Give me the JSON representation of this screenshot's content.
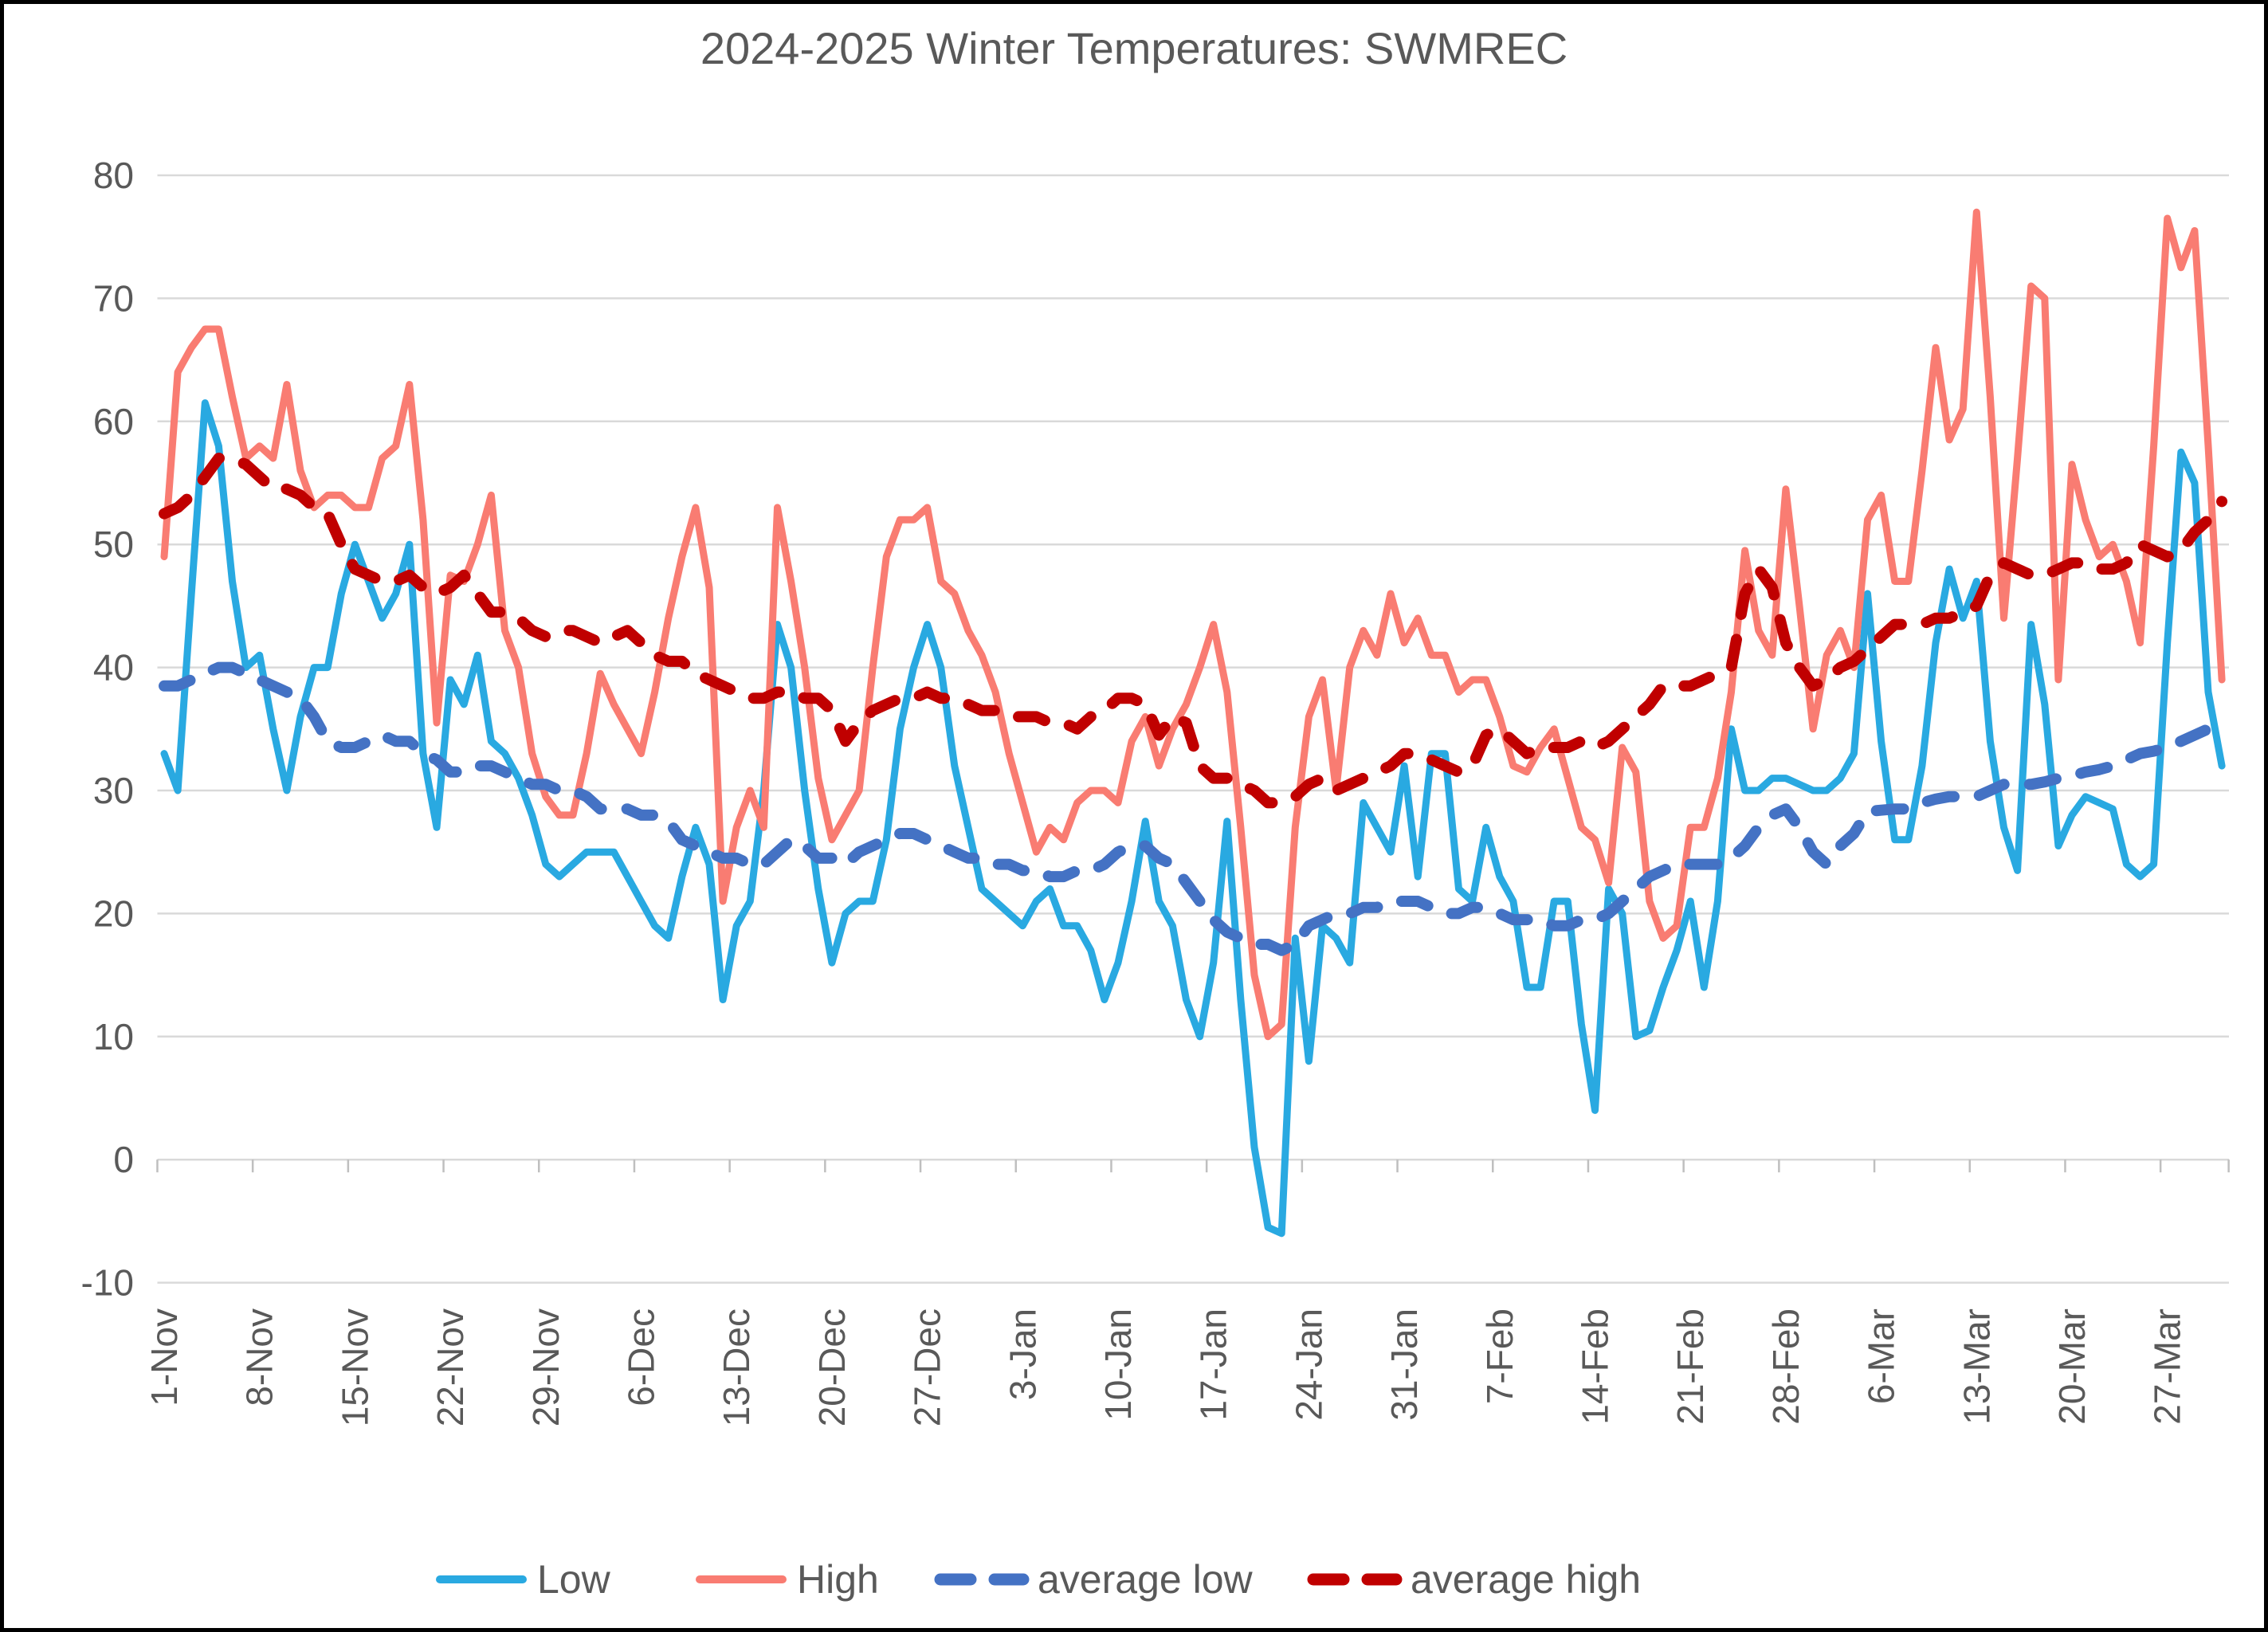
{
  "title": "2024-2025 Winter Temperatures: SWMREC",
  "colors": {
    "background": "#FFFFFF",
    "frame": "#000000",
    "gridline": "#D9D9D9",
    "axis_line": "#D9D9D9",
    "tick_mark": "#BFBFBF",
    "text": "#595959",
    "low": "#29A9E1",
    "high": "#F97C72",
    "average_low": "#4472C4",
    "average_high": "#C00000"
  },
  "y_axis": {
    "tick_labels": [
      "80",
      "70",
      "60",
      "50",
      "40",
      "30",
      "20",
      "10",
      "0",
      "-10"
    ],
    "tick_values": [
      80,
      70,
      60,
      50,
      40,
      30,
      20,
      10,
      0,
      -10
    ]
  },
  "x_axis": {
    "tick_labels": [
      "1-Nov",
      "8-Nov",
      "15-Nov",
      "22-Nov",
      "29-Nov",
      "6-Dec",
      "13-Dec",
      "20-Dec",
      "27-Dec",
      "3-Jan",
      "10-Jan",
      "17-Jan",
      "24-Jan",
      "31-Jan",
      "7-Feb",
      "14-Feb",
      "21-Feb",
      "28-Feb",
      "6-Mar",
      "13-Mar",
      "20-Mar",
      "27-Mar"
    ],
    "tick_label_indices": [
      0,
      7,
      14,
      21,
      28,
      35,
      42,
      49,
      56,
      63,
      70,
      77,
      84,
      91,
      98,
      105,
      112,
      119,
      126,
      133,
      140,
      147
    ]
  },
  "legend": {
    "items": [
      {
        "label": "Low",
        "color": "#29A9E1",
        "style": "solid",
        "x": 552
      },
      {
        "label": "High",
        "color": "#F97C72",
        "style": "solid",
        "x": 878
      },
      {
        "label": "average low",
        "color": "#4472C4",
        "style": "dashed",
        "x": 1180
      },
      {
        "label": "average high",
        "color": "#C00000",
        "style": "dashed",
        "x": 1648
      }
    ]
  },
  "chart_data": {
    "type": "line",
    "title": "2024-2025 Winter Temperatures: SWMREC",
    "xlabel": "",
    "ylabel": "",
    "ylim": [
      -10,
      80
    ],
    "grid": true,
    "legend_position": "bottom",
    "x_description": "Daily dates from 1-Nov through 31-Mar (152 categories, includes a 29-Feb placeholder); axis labeled every 7 days",
    "num_points": 152,
    "series": [
      {
        "name": "Low",
        "style": "solid",
        "color": "#29A9E1",
        "values": [
          33,
          30,
          46,
          61.5,
          58,
          47,
          40,
          41,
          35,
          30,
          36,
          40,
          40,
          46,
          50,
          47,
          44,
          46,
          50,
          33,
          27,
          39,
          37,
          41,
          34,
          33,
          31,
          28,
          24,
          23,
          24,
          25,
          25,
          25,
          23,
          21,
          19,
          18,
          23,
          27,
          24,
          13,
          19,
          21,
          30,
          43.5,
          40,
          30,
          22,
          16,
          20,
          21,
          21,
          26,
          35,
          40,
          43.5,
          40,
          32,
          27,
          22,
          21,
          20,
          19,
          21,
          22,
          19,
          19,
          17,
          13,
          16,
          21,
          27.5,
          21,
          19,
          13,
          10,
          16,
          27.5,
          13,
          1,
          -5.5,
          -6,
          18,
          8,
          19,
          18,
          16,
          29,
          27,
          25,
          32,
          23,
          33,
          33,
          22,
          21,
          27,
          23,
          21,
          14,
          14,
          21,
          21,
          11,
          4,
          22,
          20,
          10,
          10.5,
          14,
          17,
          21,
          14,
          21,
          35,
          30,
          30,
          31,
          31,
          30.5,
          30,
          30,
          31,
          33,
          46,
          34,
          26,
          26,
          32,
          42,
          48,
          44,
          47,
          34,
          27,
          23.5,
          43.5,
          37,
          25.5,
          28,
          29.5,
          29,
          28.5,
          24,
          23,
          24,
          42,
          57.5,
          55,
          38,
          32
        ]
      },
      {
        "name": "High",
        "style": "solid",
        "color": "#F97C72",
        "values": [
          49,
          64,
          66,
          67.5,
          67.5,
          62,
          57,
          58,
          57,
          63,
          56,
          53,
          54,
          54,
          53,
          53,
          57,
          58,
          63,
          52,
          35.5,
          47.5,
          47,
          50,
          54,
          43,
          40,
          33,
          29.5,
          28,
          28,
          33,
          39.5,
          37,
          35,
          33,
          38,
          44,
          49,
          53,
          46.5,
          21,
          27,
          30,
          27,
          53,
          47,
          40,
          31,
          26,
          28,
          30,
          40,
          49,
          52,
          52,
          53,
          47,
          46,
          43,
          41,
          38,
          33,
          29,
          25,
          27,
          26,
          29,
          30,
          30,
          29,
          34,
          36,
          32,
          35,
          37,
          40,
          43.5,
          38,
          27,
          15,
          10,
          11,
          27,
          36,
          39,
          30,
          40,
          43,
          41,
          46,
          42,
          44,
          41,
          41,
          38,
          39,
          39,
          36,
          32,
          31.5,
          33.5,
          35,
          31,
          27,
          26,
          22.5,
          33.5,
          31.5,
          21,
          18,
          19,
          27,
          27,
          31,
          38,
          49.5,
          43,
          41,
          54.5,
          45,
          35,
          41,
          43,
          40,
          52,
          54,
          47,
          47,
          56,
          66,
          58.5,
          61,
          77,
          62,
          44,
          57,
          71,
          70,
          39,
          56.5,
          52,
          49,
          50,
          47,
          42,
          58,
          76.5,
          72.5,
          75.5,
          58,
          39
        ]
      },
      {
        "name": "average low",
        "style": "dashed",
        "color": "#4472C4",
        "values": [
          38.5,
          38.5,
          39,
          39.5,
          40,
          40,
          39.5,
          39,
          38.5,
          38,
          37.5,
          36,
          34,
          33.5,
          33.5,
          34,
          34.5,
          34,
          34,
          33,
          32.5,
          31.5,
          31.5,
          32,
          32,
          31.5,
          31,
          30.5,
          30.5,
          30,
          30,
          29.5,
          28.5,
          28.5,
          28.5,
          28,
          28,
          27.5,
          26,
          25.5,
          25,
          24.5,
          24.5,
          24,
          24,
          25,
          26,
          25.5,
          24.5,
          24.5,
          24,
          25,
          25.5,
          26,
          26.5,
          26.5,
          26,
          25.5,
          25,
          24.5,
          24.5,
          24,
          24,
          23.5,
          23.5,
          23,
          23,
          23.5,
          23.5,
          24,
          25,
          25.5,
          25.5,
          24.5,
          24,
          22.5,
          21,
          19.5,
          18.5,
          18,
          17.5,
          17.5,
          17,
          17.5,
          19,
          19.5,
          20,
          20,
          20.5,
          20.5,
          21,
          21,
          21,
          20.5,
          20,
          20,
          20.5,
          20.5,
          20,
          19.5,
          19.5,
          19.5,
          19,
          19,
          19.5,
          19.5,
          20,
          21,
          22,
          23,
          23.5,
          24,
          24,
          24,
          24,
          24.5,
          25.5,
          27,
          28,
          28.5,
          27,
          25,
          24,
          25.5,
          26.5,
          28.3,
          28.4,
          28.5,
          28.5,
          29,
          29.3,
          29.5,
          29.5,
          29.5,
          30,
          30.5,
          30.5,
          30.5,
          30.7,
          31,
          31.2,
          31.5,
          31.7,
          32,
          32.5,
          33,
          33.2,
          33.5,
          34,
          34.5,
          35,
          35.5
        ]
      },
      {
        "name": "average high",
        "style": "dashed",
        "color": "#C00000",
        "values": [
          52.5,
          53,
          54,
          55.5,
          57,
          57,
          56.5,
          55.5,
          54.5,
          54.5,
          54,
          53,
          52.5,
          50,
          48,
          47.5,
          47,
          47,
          47.5,
          46.5,
          46,
          46.5,
          47.5,
          46,
          44.5,
          44.5,
          44,
          43,
          42.5,
          43,
          43,
          42.5,
          42,
          42.5,
          43,
          42,
          41,
          40.5,
          40.5,
          39.5,
          39,
          38.5,
          38,
          37.5,
          37.5,
          38,
          38,
          37.5,
          37.5,
          36.5,
          34,
          35.5,
          36.5,
          37,
          37.5,
          37.5,
          38,
          37.5,
          37.5,
          37,
          36.5,
          36.5,
          36,
          36,
          36,
          35.5,
          35.5,
          35,
          36,
          36.5,
          37.5,
          37.5,
          37,
          34.5,
          36,
          35.5,
          32,
          31,
          31,
          30.5,
          30,
          29,
          29,
          29.5,
          30.5,
          31,
          30,
          30.5,
          31,
          31.5,
          32,
          33,
          33,
          32.5,
          32,
          31.5,
          32,
          34.5,
          35,
          34,
          33,
          33.5,
          33.5,
          33.5,
          34,
          33.5,
          34,
          35,
          36,
          37,
          38.5,
          38.5,
          38.5,
          39,
          39.5,
          40,
          46,
          48,
          46.5,
          42,
          40,
          38.5,
          39,
          40,
          40.5,
          41.5,
          42.5,
          43.5,
          43.5,
          43.5,
          44,
          44,
          44.5,
          45,
          47.5,
          48.5,
          48,
          47.5,
          47.5,
          48,
          48.5,
          48.5,
          48,
          48,
          48.5,
          50,
          49.5,
          49,
          49.5,
          51,
          52,
          53.5
        ]
      }
    ]
  }
}
